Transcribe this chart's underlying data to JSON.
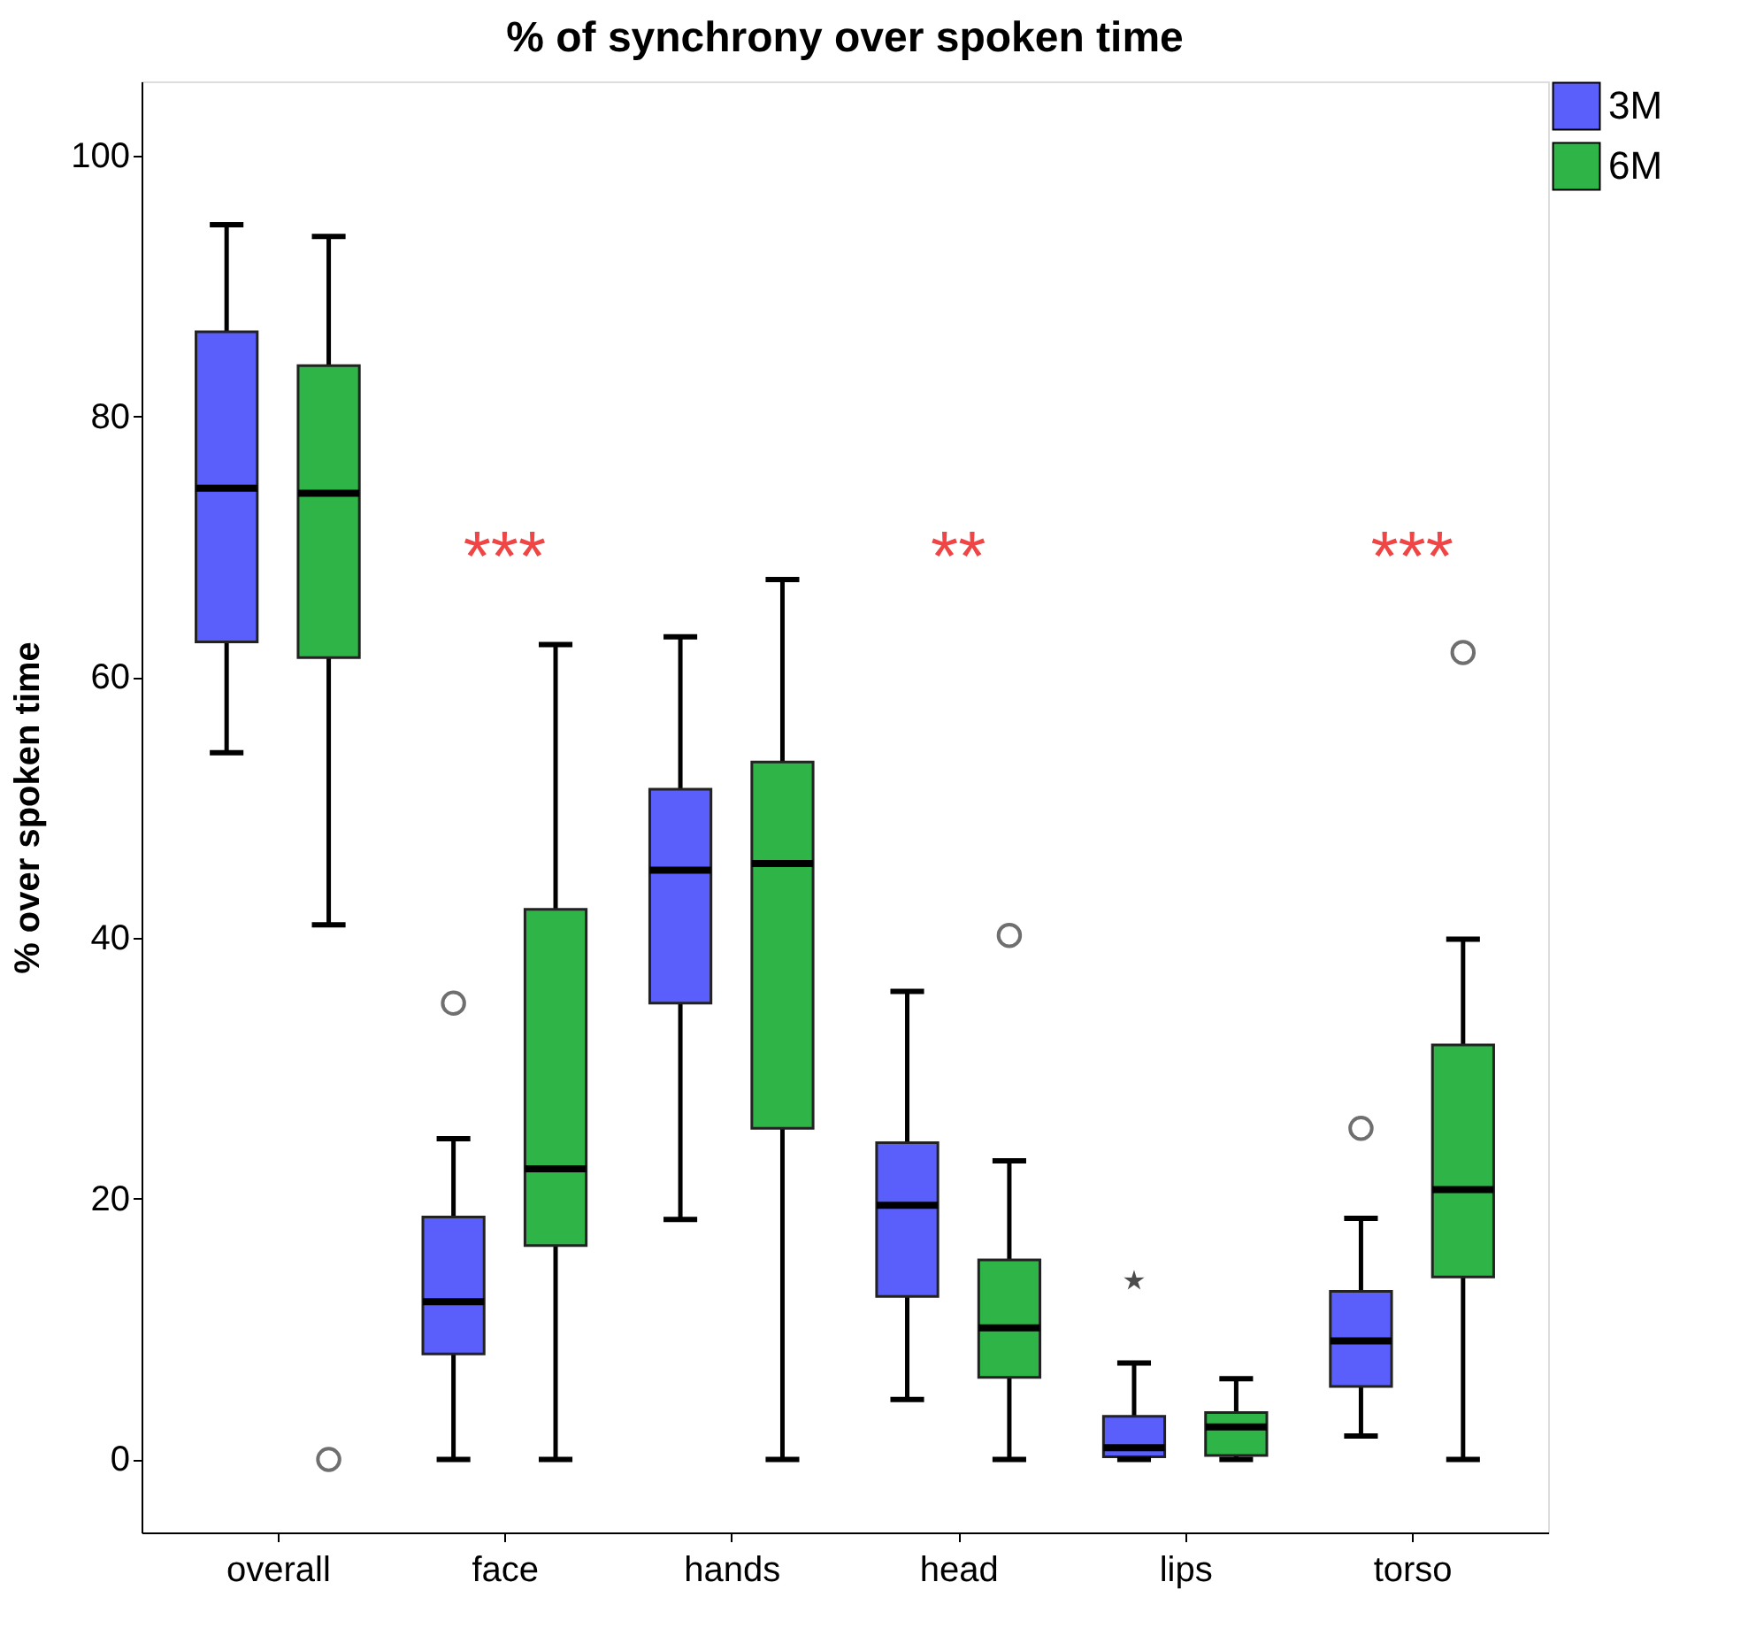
{
  "chart_data": {
    "type": "box",
    "title": "% of synchrony over spoken time",
    "ylabel": "% over spoken time",
    "categories": [
      "overall",
      "face",
      "hands",
      "head",
      "lips",
      "torso"
    ],
    "series": [
      {
        "name": "3M",
        "color": "#5a5ffc",
        "boxes": [
          {
            "low": 54.2,
            "q1": 62.7,
            "median": 74.5,
            "q3": 86.5,
            "high": 94.7
          },
          {
            "low": 0,
            "q1": 8.1,
            "median": 12.1,
            "q3": 18.6,
            "high": 24.6,
            "outliers": [
              35
            ]
          },
          {
            "low": 18.4,
            "q1": 35.0,
            "median": 45.2,
            "q3": 51.4,
            "high": 63.1
          },
          {
            "low": 4.6,
            "q1": 12.5,
            "median": 19.5,
            "q3": 24.3,
            "high": 35.9
          },
          {
            "low": 0,
            "q1": 0.2,
            "median": 0.9,
            "q3": 3.3,
            "high": 7.4,
            "outliers": [
              13.7
            ]
          },
          {
            "low": 1.8,
            "q1": 5.6,
            "median": 9.1,
            "q3": 12.9,
            "high": 18.5,
            "outliers": [
              25.4
            ]
          }
        ]
      },
      {
        "name": "6M",
        "color": "#2fb547",
        "boxes": [
          {
            "low": 41,
            "q1": 61.5,
            "median": 74.1,
            "q3": 83.9,
            "high": 93.8,
            "outliers": [
              0
            ]
          },
          {
            "low": 0,
            "q1": 16.4,
            "median": 22.3,
            "q3": 42.2,
            "high": 62.5
          },
          {
            "low": 0,
            "q1": 25.4,
            "median": 45.7,
            "q3": 53.5,
            "high": 67.5
          },
          {
            "low": 0,
            "q1": 6.3,
            "median": 10.1,
            "q3": 15.3,
            "high": 22.9,
            "outliers": [
              40.2
            ]
          },
          {
            "low": 0,
            "q1": 0.3,
            "median": 2.5,
            "q3": 3.6,
            "high": 6.2
          },
          {
            "low": 0,
            "q1": 14.0,
            "median": 20.7,
            "q3": 31.8,
            "high": 39.9,
            "outliers": [
              61.9
            ]
          }
        ]
      }
    ],
    "annotations": [
      "***",
      "**",
      "***"
    ],
    "ylim": [
      -5.6,
      105.7
    ],
    "yticks": [
      0,
      20,
      40,
      60,
      80,
      100
    ],
    "grid": false,
    "legend": "top right"
  }
}
